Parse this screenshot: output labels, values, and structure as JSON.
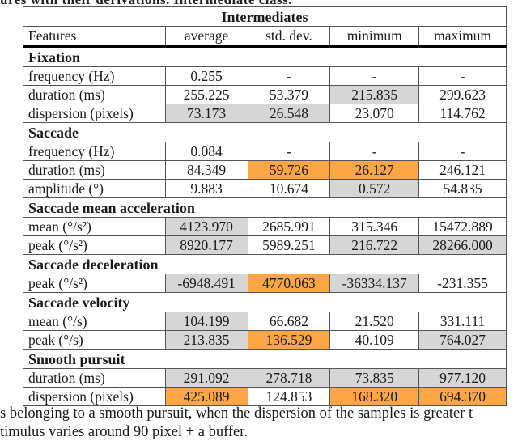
{
  "caption_top": "ures with their derivations. Intermediate class.",
  "table": {
    "title": "Intermediates",
    "columns": [
      "Features",
      "average",
      "std. dev.",
      "minimum",
      "maximum"
    ],
    "colors": {
      "gray": "#d6d6d6",
      "orange": "#fca646"
    },
    "groups": [
      {
        "name": "Fixation",
        "rows": [
          {
            "feature": "frequency (Hz)",
            "values": [
              "0.255",
              "-",
              "-",
              "-"
            ],
            "highlight": [
              "",
              "",
              "",
              ""
            ]
          },
          {
            "feature": "duration (ms)",
            "values": [
              "255.225",
              "53.379",
              "215.835",
              "299.623"
            ],
            "highlight": [
              "",
              "",
              "gray",
              ""
            ]
          },
          {
            "feature": "dispersion (pixels)",
            "values": [
              "73.173",
              "26.548",
              "23.070",
              "114.762"
            ],
            "highlight": [
              "gray",
              "gray",
              "",
              ""
            ]
          }
        ]
      },
      {
        "name": "Saccade",
        "rows": [
          {
            "feature": "frequency (Hz)",
            "values": [
              "0.084",
              "-",
              "-",
              "-"
            ],
            "highlight": [
              "",
              "",
              "",
              ""
            ]
          },
          {
            "feature": "duration (ms)",
            "values": [
              "84.349",
              "59.726",
              "26.127",
              "246.121"
            ],
            "highlight": [
              "",
              "orange",
              "orange",
              ""
            ]
          },
          {
            "feature": "amplitude (°)",
            "values": [
              "9.883",
              "10.674",
              "0.572",
              "54.835"
            ],
            "highlight": [
              "",
              "",
              "gray",
              ""
            ]
          }
        ]
      },
      {
        "name": "Saccade mean acceleration",
        "rows": [
          {
            "feature": "mean (°/s²)",
            "values": [
              "4123.970",
              "2685.991",
              "315.346",
              "15472.889"
            ],
            "highlight": [
              "gray",
              "",
              "",
              ""
            ]
          },
          {
            "feature": "peak (°/s²)",
            "values": [
              "8920.177",
              "5989.251",
              "216.722",
              "28266.000"
            ],
            "highlight": [
              "gray",
              "",
              "gray",
              "gray"
            ]
          }
        ]
      },
      {
        "name": "Saccade deceleration",
        "rows": [
          {
            "feature": "peak (°/s²)",
            "values": [
              "-6948.491",
              "4770.063",
              "-36334.137",
              "-231.355"
            ],
            "highlight": [
              "gray",
              "orange",
              "gray",
              ""
            ]
          }
        ]
      },
      {
        "name": "Saccade velocity",
        "rows": [
          {
            "feature": "mean (°/s)",
            "values": [
              "104.199",
              "66.682",
              "21.520",
              "331.111"
            ],
            "highlight": [
              "gray",
              "",
              "",
              ""
            ]
          },
          {
            "feature": "peak (°/s)",
            "values": [
              "213.835",
              "136.529",
              "40.109",
              "764.027"
            ],
            "highlight": [
              "gray",
              "orange",
              "",
              "gray"
            ]
          }
        ]
      },
      {
        "name": "Smooth pursuit",
        "rows": [
          {
            "feature": "duration (ms)",
            "values": [
              "291.092",
              "278.718",
              "73.835",
              "977.120"
            ],
            "highlight": [
              "gray",
              "gray",
              "gray",
              "gray"
            ]
          },
          {
            "feature": "dispersion (pixels)",
            "values": [
              "425.089",
              "124.853",
              "168.320",
              "694.370"
            ],
            "highlight": [
              "orange",
              "",
              "orange",
              "orange"
            ]
          }
        ]
      }
    ]
  },
  "caption_bottom": [
    "s belonging to a smooth pursuit, when the dispersion of the samples is greater t",
    "timulus varies around 90 pixel + a buffer."
  ]
}
